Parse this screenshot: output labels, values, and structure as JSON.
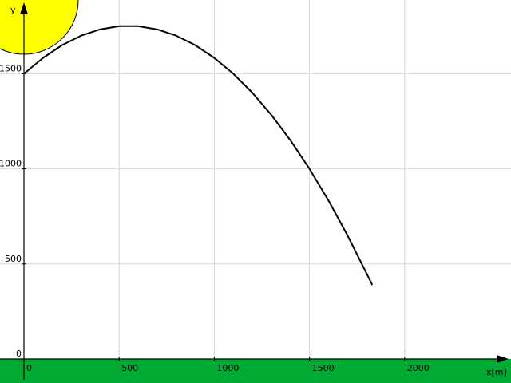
{
  "chart_data": {
    "type": "line",
    "title": "",
    "xlabel": "x[m]",
    "ylabel": "y",
    "xlim": [
      -15,
      2580
    ],
    "ylim": [
      -30,
      1880
    ],
    "x_ticks": [
      0,
      500,
      1000,
      1500,
      2000
    ],
    "y_ticks": [
      0,
      500,
      1000,
      1500
    ],
    "x_tick_labels": [
      "0",
      "500",
      "1000",
      "1500",
      "2000"
    ],
    "y_tick_labels": [
      "0",
      "500",
      "1000",
      "1500"
    ],
    "grid": true,
    "series": [
      {
        "x": [
          0,
          100,
          200,
          300,
          400,
          500,
          600,
          700,
          800,
          900,
          1000,
          1100,
          1200,
          1300,
          1400,
          1500,
          1600,
          1700,
          1800,
          1830
        ],
        "y": [
          1500,
          1583,
          1650,
          1700,
          1733,
          1750,
          1750,
          1733,
          1700,
          1650,
          1583,
          1500,
          1400,
          1283,
          1150,
          1000,
          833,
          650,
          450,
          390
        ]
      }
    ],
    "colors": {
      "line": "#000000",
      "grid": "#d9d9d9",
      "ground": "#00aa33",
      "sun": "#ffff00"
    }
  }
}
